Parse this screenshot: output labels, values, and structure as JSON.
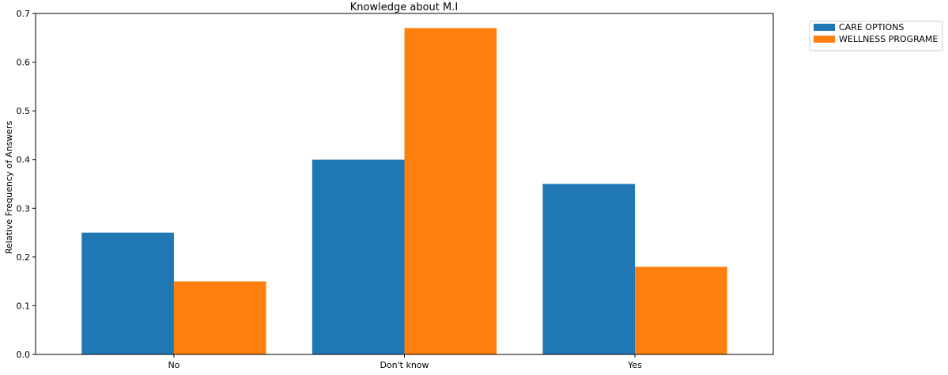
{
  "chart_data": {
    "type": "bar",
    "title": "Knowledge about M.I",
    "xlabel": "",
    "ylabel": "Relative Frequency of Answers",
    "categories": [
      "No",
      "Don't know",
      "Yes"
    ],
    "series": [
      {
        "name": "CARE OPTIONS",
        "values": [
          0.25,
          0.4,
          0.35
        ],
        "color": "#1f77b4"
      },
      {
        "name": "WELLNESS PROGRAME",
        "values": [
          0.15,
          0.67,
          0.18
        ],
        "color": "#ff7f0e"
      }
    ],
    "ylim": [
      0,
      0.7
    ],
    "yticks": [
      "0.0",
      "0.1",
      "0.2",
      "0.3",
      "0.4",
      "0.5",
      "0.6",
      "0.7"
    ],
    "grid": false,
    "legend_position": "outside-top-right"
  }
}
